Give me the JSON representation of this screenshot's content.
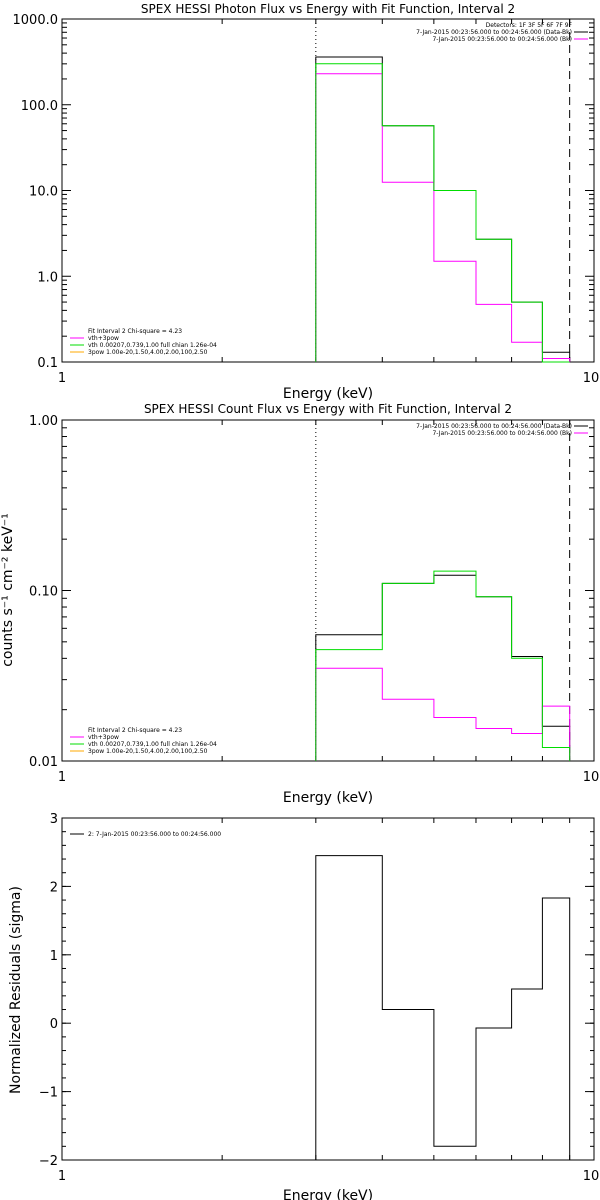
{
  "chart_data": [
    {
      "type": "line",
      "title": "SPEX HESSI Photon Flux vs Energy with Fit Function, Interval 2",
      "xlabel": "Energy (keV)",
      "ylabel": "",
      "xscale": "log",
      "yscale": "log",
      "xlim": [
        1,
        10
      ],
      "ylim": [
        0.1,
        1000
      ],
      "xticks": [
        {
          "v": 1,
          "label": "1"
        },
        {
          "v": 10,
          "label": "10"
        }
      ],
      "yticks": [
        {
          "v": 0.1,
          "label": "0.1"
        },
        {
          "v": 1,
          "label": "1.0"
        },
        {
          "v": 10,
          "label": "10.0"
        },
        {
          "v": 100,
          "label": "100.0"
        },
        {
          "v": 1000,
          "label": "1000.0"
        }
      ],
      "vlines": [
        {
          "x": 3,
          "style": "dotted"
        },
        {
          "x": 9,
          "style": "dashed"
        }
      ],
      "bin_edges": [
        3,
        3.5,
        4,
        4.5,
        5,
        6,
        7,
        8,
        9
      ],
      "series": [
        {
          "name": "",
          "color": "#000000",
          "steps": [
            [
              3,
              3.5,
              360
            ],
            [
              3.5,
              4,
              360
            ],
            [
              4,
              5,
              57
            ],
            [
              5,
              6,
              10
            ],
            [
              6,
              7,
              2.7
            ],
            [
              7,
              8,
              0.5
            ],
            [
              8,
              9,
              0.13
            ]
          ]
        },
        {
          "name": "",
          "color": "#ff00ff",
          "steps": [
            [
              3,
              3.5,
              230
            ],
            [
              3.5,
              4,
              230
            ],
            [
              4,
              5,
              12.5
            ],
            [
              5,
              6,
              1.5
            ],
            [
              6,
              7,
              0.47
            ],
            [
              7,
              8,
              0.17
            ],
            [
              8,
              9,
              0.11
            ]
          ]
        },
        {
          "name": "",
          "color": "#00dd00",
          "steps": [
            [
              3,
              3.5,
              300
            ],
            [
              3.5,
              4,
              300
            ],
            [
              4,
              5,
              57
            ],
            [
              5,
              6,
              10
            ],
            [
              6,
              7,
              2.7
            ],
            [
              7,
              8,
              0.5
            ],
            [
              8,
              9,
              0.1
            ]
          ]
        }
      ],
      "legend_top_right": [
        {
          "text": "Detectors: 1F 3F 5F 6F 7F 9F",
          "color": ""
        },
        {
          "text": "7-Jan-2015 00:23:56.000 to 00:24:56.000 (Data-Bk)",
          "color": "#000000"
        },
        {
          "text": "7-Jan-2015 00:23:56.000 to 00:24:56.000 (Bk)",
          "color": "#ff00ff"
        }
      ],
      "legend_bottom_left": [
        {
          "text": "Fit Interval 2   Chi-square = 4.23",
          "color": ""
        },
        {
          "text": "vth+3pow",
          "color": "#ff00ff"
        },
        {
          "text": "vth 0.00207,0.739,1.00  full chian 1.26e-04",
          "color": "#00dd00"
        },
        {
          "text": "3pow 1.00e-20,1.50,4.00,2.00,100,2.50",
          "color": "#ffaa00"
        }
      ]
    },
    {
      "type": "line",
      "title": "SPEX HESSI Count Flux vs Energy with Fit Function, Interval 2",
      "xlabel": "Energy (keV)",
      "ylabel": "counts s⁻¹ cm⁻² keV⁻¹",
      "xscale": "log",
      "yscale": "log",
      "xlim": [
        1,
        10
      ],
      "ylim": [
        0.01,
        1
      ],
      "xticks": [
        {
          "v": 1,
          "label": "1"
        },
        {
          "v": 10,
          "label": "10"
        }
      ],
      "yticks": [
        {
          "v": 0.01,
          "label": "0.01"
        },
        {
          "v": 0.1,
          "label": "0.10"
        },
        {
          "v": 1,
          "label": "1.00"
        }
      ],
      "vlines": [
        {
          "x": 3,
          "style": "dotted"
        },
        {
          "x": 9,
          "style": "dashed"
        }
      ],
      "series": [
        {
          "name": "",
          "color": "#000000",
          "steps": [
            [
              3,
              3.5,
              0.055
            ],
            [
              3.5,
              4,
              0.055
            ],
            [
              4,
              5,
              0.11
            ],
            [
              5,
              6,
              0.123
            ],
            [
              6,
              7,
              0.092
            ],
            [
              7,
              8,
              0.041
            ],
            [
              8,
              9,
              0.016
            ]
          ]
        },
        {
          "name": "",
          "color": "#ff00ff",
          "steps": [
            [
              3,
              3.5,
              0.035
            ],
            [
              3.5,
              4,
              0.035
            ],
            [
              4,
              5,
              0.023
            ],
            [
              5,
              6,
              0.018
            ],
            [
              6,
              7,
              0.0155
            ],
            [
              7,
              8,
              0.0145
            ],
            [
              8,
              9,
              0.021
            ]
          ]
        },
        {
          "name": "",
          "color": "#00dd00",
          "steps": [
            [
              3,
              3.5,
              0.045
            ],
            [
              3.5,
              4,
              0.045
            ],
            [
              4,
              5,
              0.11
            ],
            [
              5,
              6,
              0.13
            ],
            [
              6,
              7,
              0.092
            ],
            [
              7,
              8,
              0.04
            ],
            [
              8,
              9,
              0.012
            ]
          ]
        }
      ],
      "legend_top_right": [
        {
          "text": "7-Jan-2015 00:23:56.000 to 00:24:56.000 (Data-Bk)",
          "color": "#000000"
        },
        {
          "text": "7-Jan-2015 00:23:56.000 to 00:24:56.000 (Bk)",
          "color": "#ff00ff"
        }
      ],
      "legend_bottom_left": [
        {
          "text": "Fit Interval 2   Chi-square = 4.23",
          "color": ""
        },
        {
          "text": "vth+3pow",
          "color": "#ff00ff"
        },
        {
          "text": "vth 0.00207,0.739,1.00  full chian 1.26e-04",
          "color": "#00dd00"
        },
        {
          "text": "3pow 1.00e-20,1.50,4.00,2.00,100,2.50",
          "color": "#ffaa00"
        }
      ]
    },
    {
      "type": "line",
      "title": "",
      "xlabel": "Energy (keV)",
      "ylabel": "Normalized Residuals (sigma)",
      "xscale": "log",
      "yscale": "linear",
      "xlim": [
        1,
        10
      ],
      "ylim": [
        -2,
        3
      ],
      "xticks": [
        {
          "v": 1,
          "label": "1"
        },
        {
          "v": 10,
          "label": "10"
        }
      ],
      "yticks": [
        {
          "v": -2,
          "label": "−2"
        },
        {
          "v": -1,
          "label": "−1"
        },
        {
          "v": 0,
          "label": "0"
        },
        {
          "v": 1,
          "label": "1"
        },
        {
          "v": 2,
          "label": "2"
        },
        {
          "v": 3,
          "label": "3"
        }
      ],
      "vlines": [],
      "series": [
        {
          "name": "",
          "color": "#000000",
          "steps": [
            [
              3,
              3.5,
              2.45
            ],
            [
              3.5,
              4,
              2.45
            ],
            [
              4,
              5,
              0.2
            ],
            [
              5,
              6,
              -1.8
            ],
            [
              6,
              7,
              -0.07
            ],
            [
              7,
              8,
              0.5
            ],
            [
              8,
              9,
              1.83
            ]
          ]
        }
      ],
      "legend_top_right": [],
      "legend_bottom_left": [],
      "legend_top_left": [
        {
          "text": "2: 7-Jan-2015 00:23:56.000 to 00:24:56.000",
          "color": "#000000"
        }
      ]
    }
  ]
}
